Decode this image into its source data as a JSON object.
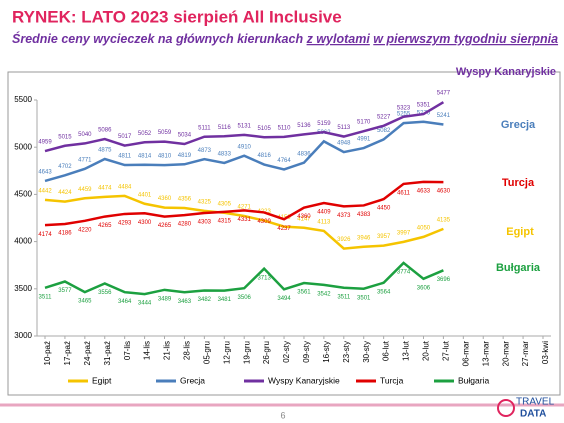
{
  "chart_data": {
    "type": "line",
    "title": "RYNEK: LATO 2023 sierpień All Inclusive",
    "subtitle": [
      "Średnie ceny wycieczek na głównych kierunkach ",
      "z wylotami",
      " ",
      "w pierwszym tygodniu sierpnia"
    ],
    "categories": [
      "10-paź",
      "17-paź",
      "24-paź",
      "31-paź",
      "07-lis",
      "14-lis",
      "21-lis",
      "28-lis",
      "05-gru",
      "12-gru",
      "19-gru",
      "26-gru",
      "02-sty",
      "09-sty",
      "16-sty",
      "23-sty",
      "30-sty",
      "06-lut",
      "13-lut",
      "20-lut",
      "27-lut",
      "06-mar",
      "13-mar",
      "20-mar",
      "27-mar",
      "03-kwi"
    ],
    "series": [
      {
        "name": "Egipt",
        "color": "#f5c400",
        "values": [
          4442,
          4424,
          4459,
          4474,
          4484,
          4401,
          4360,
          4356,
          4325,
          4305,
          4271,
          4223,
          4159,
          4147,
          4113,
          3926,
          3946,
          3957,
          3997,
          4050,
          4135,
          null,
          null,
          null,
          null,
          null
        ]
      },
      {
        "name": "Grecja",
        "color": "#4a7ebb",
        "values": [
          4643,
          4702,
          4771,
          4875,
          4811,
          4814,
          4810,
          4819,
          4873,
          4833,
          4910,
          4816,
          4764,
          4836,
          5062,
          4948,
          4991,
          5082,
          5255,
          5270,
          5241,
          null,
          null,
          null,
          null,
          null
        ]
      },
      {
        "name": "Wyspy Kanaryjskie",
        "color": "#7030a0",
        "values": [
          4959,
          5015,
          5040,
          5086,
          5017,
          5052,
          5059,
          5034,
          5111,
          5116,
          5131,
          5105,
          5110,
          5136,
          5159,
          5113,
          5170,
          5227,
          5323,
          5351,
          5477,
          null,
          null,
          null,
          null,
          null
        ]
      },
      {
        "name": "Turcja",
        "color": "#e00000",
        "values": [
          4174,
          4186,
          4220,
          4265,
          4293,
          4300,
          4265,
          4280,
          4303,
          4315,
          4331,
          4309,
          4237,
          4360,
          4409,
          4373,
          4383,
          4450,
          4611,
          4633,
          4630,
          null,
          null,
          null,
          null,
          null
        ]
      },
      {
        "name": "Bułgaria",
        "color": "#1ca040",
        "values": [
          3511,
          3577,
          3465,
          3556,
          3464,
          3444,
          3489,
          3463,
          3482,
          3481,
          3506,
          3713,
          3494,
          3561,
          3542,
          3511,
          3501,
          3564,
          3774,
          3606,
          3696,
          null,
          null,
          null,
          null,
          null
        ]
      }
    ],
    "ylim": [
      3000,
      5500
    ],
    "yticks": [
      3000,
      3500,
      4000,
      4500,
      5000,
      5500
    ],
    "grid": false,
    "legend": "bottom",
    "page_number": "6",
    "logo": [
      "TRAVEL",
      "DATA"
    ]
  }
}
